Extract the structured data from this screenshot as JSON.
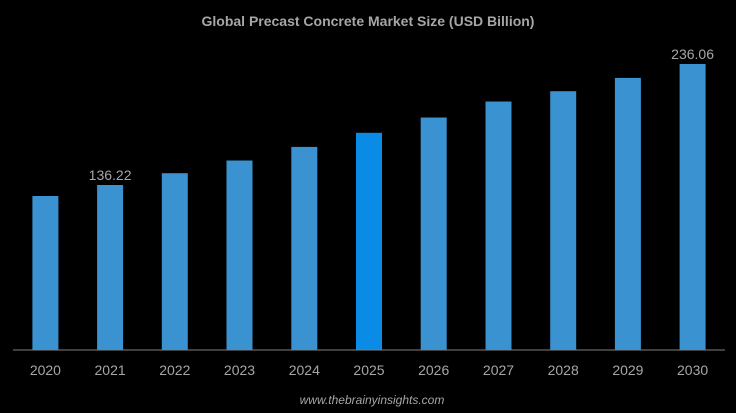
{
  "chart_data": {
    "type": "bar",
    "title": "Global Precast Concrete Market Size (USD Billion)",
    "xlabel": "",
    "ylabel": "",
    "categories": [
      "2020",
      "2021",
      "2022",
      "2023",
      "2024",
      "2025",
      "2026",
      "2027",
      "2028",
      "2029",
      "2030"
    ],
    "values": [
      127.1,
      136.22,
      145.9,
      156.4,
      167.6,
      179.3,
      191.9,
      205.1,
      213.6,
      224.6,
      236.06
    ],
    "data_labels": {
      "1": "136.22",
      "10": "236.06"
    },
    "highlight_index": 5,
    "ylim": [
      0,
      240
    ],
    "grid": false,
    "colors": {
      "bar": "#3a92d0",
      "highlight": "#0a8ce6",
      "text": "#a6a6a6",
      "background": "#000000",
      "axis": "#7f7f7f"
    }
  },
  "footer": {
    "source": "www.thebrainyinsights.com"
  }
}
